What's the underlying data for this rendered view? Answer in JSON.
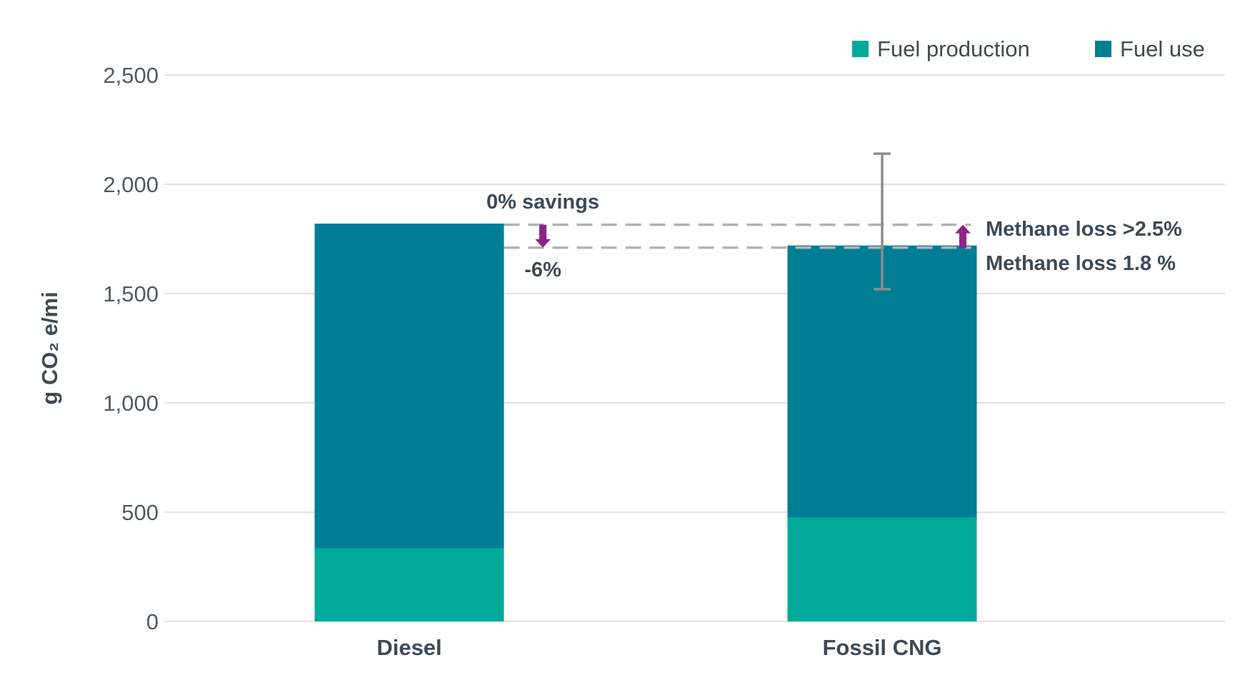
{
  "chart_data": {
    "type": "bar",
    "stacked": true,
    "categories": [
      "Diesel",
      "Fossil CNG"
    ],
    "series": [
      {
        "name": "Fuel production",
        "values": [
          335,
          475
        ],
        "color": "#00a99a"
      },
      {
        "name": "Fuel use",
        "values": [
          1485,
          1245
        ],
        "color": "#007e94"
      }
    ],
    "ylabel": "g CO₂ e/mi",
    "ylim": [
      0,
      2500
    ],
    "yticks": [
      0,
      500,
      1000,
      1500,
      2000,
      2500
    ],
    "ytick_labels": [
      "0",
      "500",
      "1,000",
      "1,500",
      "2,000",
      "2,500"
    ],
    "grid": true,
    "legend_position": "top-right",
    "error_bar": {
      "category": "Fossil CNG",
      "low": 1520,
      "high": 2140,
      "color": "#8c8c8c"
    },
    "reference_lines": [
      {
        "y": 1815,
        "style": "dashed",
        "color": "#b3b3b3"
      },
      {
        "y": 1710,
        "style": "dashed",
        "color": "#b3b3b3"
      }
    ],
    "arrow_color": "#8e2285",
    "annotations": {
      "savings": "0% savings",
      "reduction": "-6%",
      "methane_high": "Methane loss >2.5%",
      "methane_base": "Methane loss 1.8 %"
    }
  }
}
